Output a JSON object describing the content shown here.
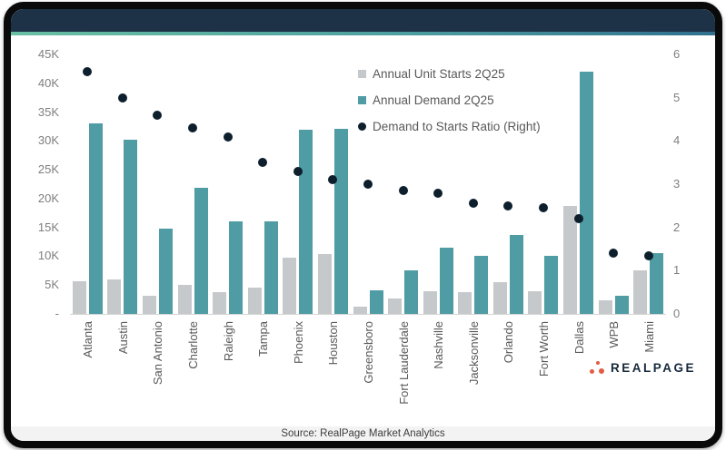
{
  "chart_data": {
    "type": "bar",
    "title": "",
    "categories": [
      "Atlanta",
      "Austin",
      "San Antonio",
      "Charlotte",
      "Raleigh",
      "Tampa",
      "Phoenix",
      "Houston",
      "Greensboro",
      "Fort Lauderdale",
      "Nashville",
      "Jacksonville",
      "Orlando",
      "Fort Worth",
      "Dallas",
      "WPB",
      "Miami"
    ],
    "series": [
      {
        "name": "Annual Unit Starts 2Q25",
        "type": "bar",
        "axis": "left",
        "color": "#c6c9cb",
        "values": [
          5600,
          6000,
          3100,
          5000,
          3800,
          4600,
          9700,
          10400,
          1300,
          2600,
          3900,
          3800,
          5500,
          3900,
          18700,
          2400,
          7500
        ]
      },
      {
        "name": "Annual Demand 2Q25",
        "type": "bar",
        "axis": "left",
        "color": "#4f9ca5",
        "values": [
          33000,
          30200,
          14800,
          21900,
          16000,
          16000,
          31900,
          32100,
          4100,
          7600,
          11500,
          10100,
          13700,
          10100,
          42000,
          3200,
          10500
        ]
      },
      {
        "name": "Demand to Starts Ratio (Right)",
        "type": "scatter",
        "axis": "right",
        "color": "#0d1e2d",
        "values": [
          5.6,
          5.0,
          4.6,
          4.3,
          4.1,
          3.5,
          3.3,
          3.1,
          3.0,
          2.85,
          2.8,
          2.55,
          2.5,
          2.45,
          2.2,
          1.4,
          1.35
        ]
      }
    ],
    "left_axis": {
      "ticks": [
        "45K",
        "40K",
        "35K",
        "30K",
        "25K",
        "20K",
        "15K",
        "10K",
        "5K",
        "-"
      ],
      "min": 0,
      "max": 45000
    },
    "right_axis": {
      "ticks": [
        "6",
        "5",
        "4",
        "3",
        "2",
        "1",
        "0"
      ],
      "min": 0,
      "max": 6
    },
    "grid": false,
    "legend_position": "top-center-inside"
  },
  "footer": {
    "source": "Source: RealPage Market Analytics"
  },
  "brand": {
    "logo_text": "REALPAGE"
  },
  "colors": {
    "frame": "#0a0a0a",
    "header_band": "#1e3247",
    "accent_gradient_start": "#6abfa3",
    "accent_gradient_end": "#30708e",
    "starts_bar": "#c6c9cb",
    "demand_bar": "#4f9ca5",
    "ratio_dot": "#0d1e2d",
    "footer_bg": "#f3f3f3",
    "logo_red": "#e25c44",
    "logo_navy": "#16293b"
  }
}
